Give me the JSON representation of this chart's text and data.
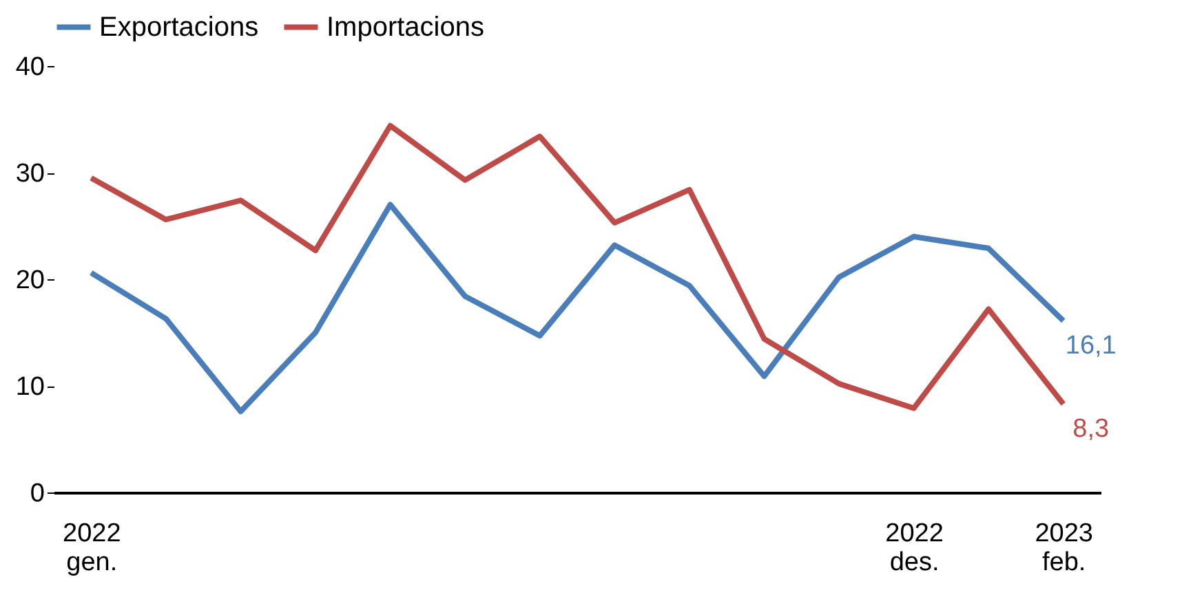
{
  "chart_data": {
    "type": "line",
    "categories": [
      "2022\ngen.",
      null,
      null,
      null,
      null,
      null,
      null,
      null,
      null,
      null,
      null,
      "2022\ndes.",
      null,
      "2023\nfeb."
    ],
    "series": [
      {
        "name": "Exportacions",
        "color": "#4a7ebb",
        "values": [
          20.6,
          16.3,
          7.6,
          15.0,
          27.0,
          18.4,
          14.7,
          23.2,
          19.4,
          10.9,
          20.2,
          24.0,
          22.9,
          16.1
        ],
        "value_labels": [
          null,
          null,
          null,
          null,
          null,
          null,
          null,
          null,
          null,
          null,
          null,
          null,
          null,
          "16,1"
        ]
      },
      {
        "name": "Importacions",
        "color": "#be4b48",
        "values": [
          29.5,
          25.6,
          27.4,
          22.7,
          34.4,
          29.3,
          33.4,
          25.3,
          28.4,
          14.4,
          10.2,
          7.9,
          17.2,
          8.3
        ],
        "value_labels": [
          null,
          null,
          null,
          null,
          null,
          null,
          null,
          null,
          null,
          null,
          null,
          null,
          null,
          "8,3"
        ]
      }
    ],
    "ylim": [
      0,
      40
    ],
    "yticks": [
      0,
      10,
      20,
      30,
      40
    ],
    "grid": false,
    "legend": "top",
    "marker": "none",
    "line_style": "solid"
  }
}
